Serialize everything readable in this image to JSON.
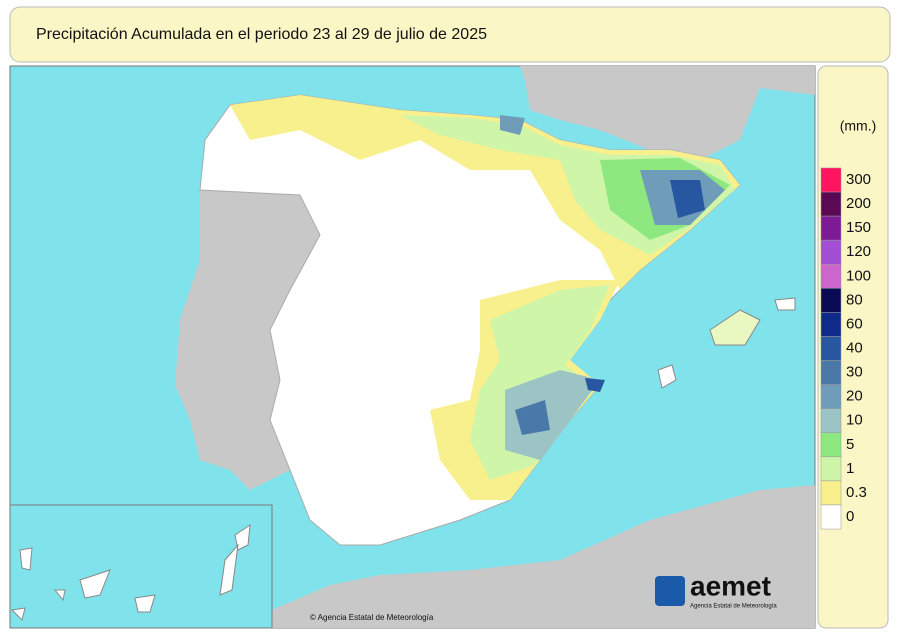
{
  "header": {
    "title": "Precipitación Acumulada en el periodo 23 al 29 de julio de 2025"
  },
  "legend": {
    "unit": "(mm.)",
    "items": [
      {
        "label": "300",
        "color": "#ff1461"
      },
      {
        "label": "200",
        "color": "#5a0a55"
      },
      {
        "label": "150",
        "color": "#7d1b96"
      },
      {
        "label": "120",
        "color": "#a24fd6"
      },
      {
        "label": "100",
        "color": "#cc66cc"
      },
      {
        "label": "80",
        "color": "#0b0b55"
      },
      {
        "label": "60",
        "color": "#0f2a88"
      },
      {
        "label": "40",
        "color": "#2657a0"
      },
      {
        "label": "30",
        "color": "#4a78a8"
      },
      {
        "label": "20",
        "color": "#6f9cb8"
      },
      {
        "label": "10",
        "color": "#9cc4c4"
      },
      {
        "label": "5",
        "color": "#8ee880"
      },
      {
        "label": "1",
        "color": "#cff5a8"
      },
      {
        "label": "0.3",
        "color": "#f8f08c"
      },
      {
        "label": "0",
        "color": "#ffffff"
      }
    ]
  },
  "logo": {
    "name": "aemet",
    "subtitle": "Agencia Estatal de Meteorología"
  },
  "credit": "© Agencia Estatal de Meteorología"
}
